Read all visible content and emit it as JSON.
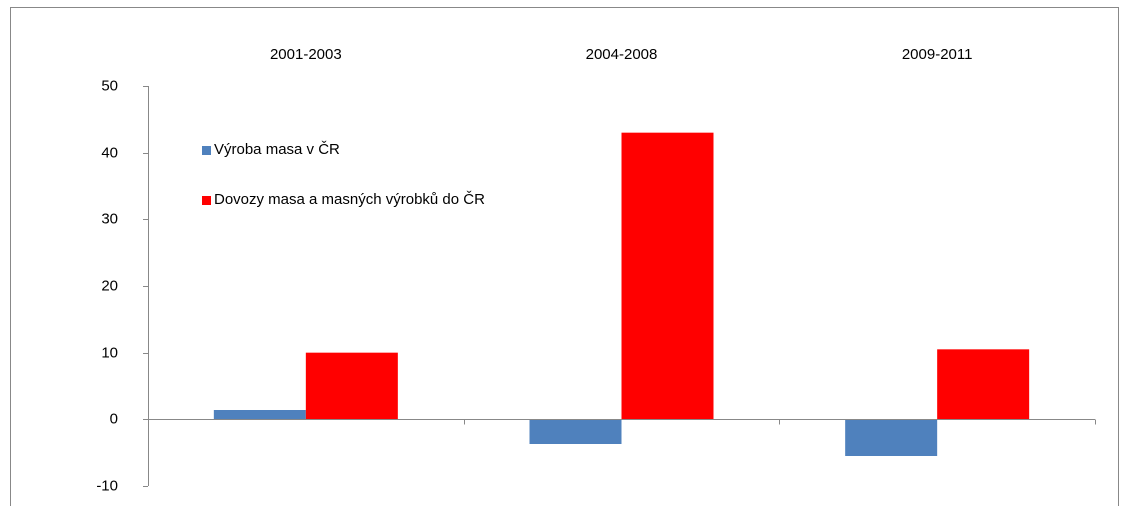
{
  "chart_data": {
    "type": "bar",
    "categories": [
      "2001-2003",
      "2004-2008",
      "2009-2011"
    ],
    "series": [
      {
        "name": "Výroba masa v ČR",
        "color": "#4f81bd",
        "values": [
          1.4,
          -3.7,
          -5.5
        ]
      },
      {
        "name": "Dovozy masa a masných výrobků do ČR",
        "color": "#ff0000",
        "values": [
          10,
          43,
          10.5
        ]
      }
    ],
    "ylim": [
      -10,
      50
    ],
    "yticks": [
      -10,
      0,
      10,
      20,
      30,
      40,
      50
    ]
  }
}
